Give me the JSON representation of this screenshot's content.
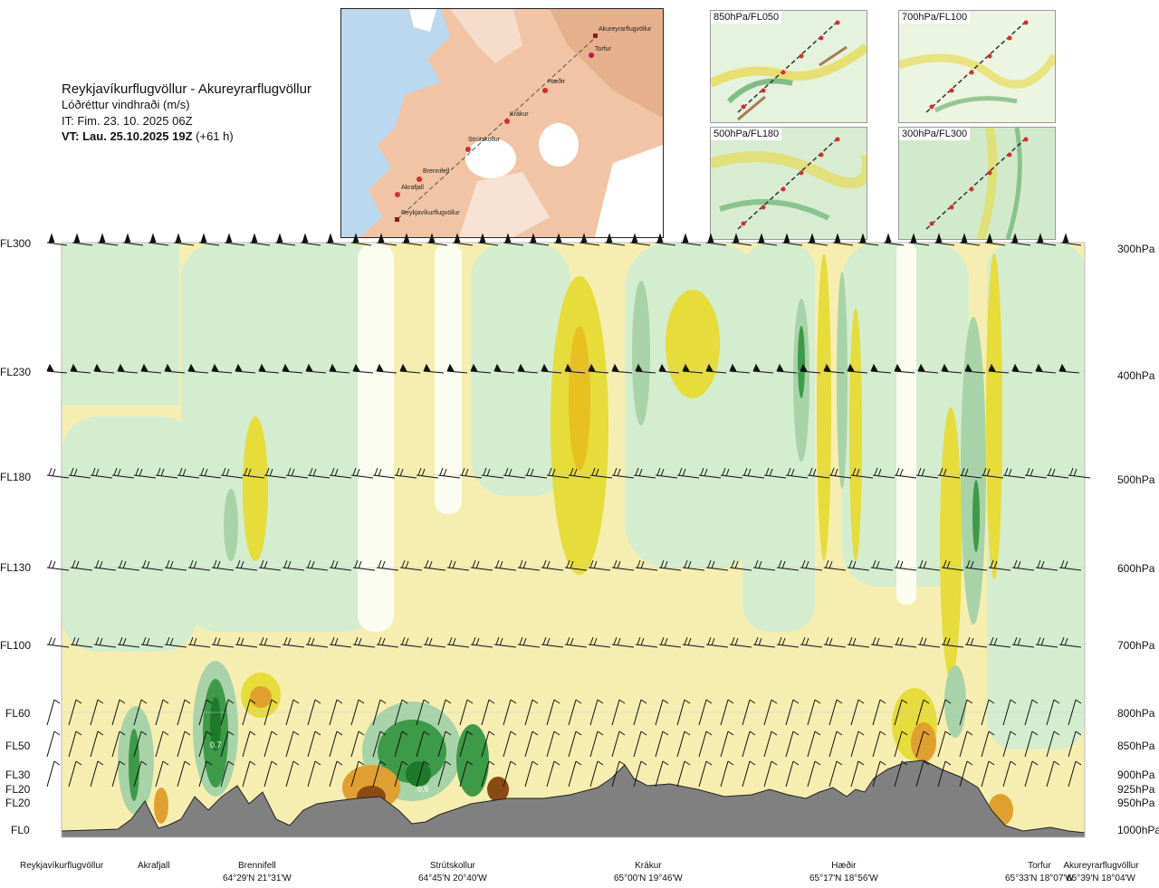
{
  "header": {
    "route": "Reykjavíkurflugvöllur - Akureyrarflugvöllur",
    "variable": "Lóðréttur vindhraði (m/s)",
    "issue": "IT: Fim. 23. 10. 2025 06Z",
    "valid_bold": "VT: Lau. 25.10.2025 19Z",
    "valid_offset": " (+61 h)"
  },
  "map": {
    "waypoints": [
      "Akureyrarflugvöllur",
      "Torfur",
      "Hæðir",
      "Krákur",
      "Strútskollur",
      "Brennifell",
      "Akrafjall",
      "Reykjavíkurflugvöllur"
    ]
  },
  "panels": [
    {
      "label": "850hPa/FL050"
    },
    {
      "label": "700hPa/FL100"
    },
    {
      "label": "500hPa/FL180"
    },
    {
      "label": "300hPa/FL300"
    }
  ],
  "colors": {
    "strong_down": "#8a4a14",
    "down_orange": "#e0a030",
    "down_yellow": "#e6dc3a",
    "weak_down": "#f6eeb0",
    "neutral": "#fafdf0",
    "weak_up": "#d4edcf",
    "up": "#a8d3a8",
    "strong_up": "#3d9a48",
    "terrain": "#808080"
  },
  "chart_data": {
    "type": "heatmap",
    "title": "Reykjavíkurflugvöllur - Akureyrarflugvöllur",
    "ylabel_left": [
      "FL300",
      "FL230",
      "FL180",
      "FL130",
      "FL100",
      "FL60",
      "FL50",
      "FL30",
      "FL20",
      "FL20",
      "FL0"
    ],
    "ylabel_right": [
      "300hPa",
      "400hPa",
      "500hPa",
      "600hPa",
      "700hPa",
      "800hPa",
      "850hPa",
      "900hPa",
      "925hPa",
      "950hPa",
      "1000hPa"
    ],
    "stations": [
      {
        "name": "Reykjavíkurflugvöllur",
        "coord": ""
      },
      {
        "name": "Akrafjall",
        "coord": ""
      },
      {
        "name": "Brennifell",
        "coord": "64°29'N 21°31'W"
      },
      {
        "name": "Strútskollur",
        "coord": "64°45'N 20°40'W"
      },
      {
        "name": "Krákur",
        "coord": "65°00'N 19°46'W"
      },
      {
        "name": "Hæðir",
        "coord": "65°17'N 18°56'W"
      },
      {
        "name": "Torfur",
        "coord": "65°33'N 18°07'W"
      },
      {
        "name": "Akureyrarflugvöllur",
        "coord": "65°39'N 18°04'W"
      }
    ],
    "annotations": [
      "0.7",
      "0.6"
    ]
  }
}
